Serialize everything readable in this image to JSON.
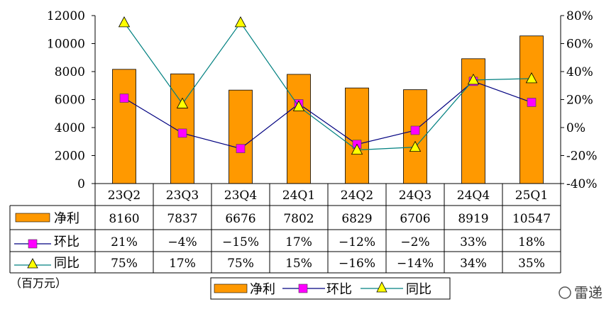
{
  "chart_data": {
    "type": "bar",
    "categories": [
      "23Q2",
      "23Q3",
      "23Q4",
      "24Q1",
      "24Q2",
      "24Q3",
      "24Q4",
      "25Q1"
    ],
    "series": [
      {
        "name": "净利",
        "type": "bar",
        "axis": "left",
        "color": "#FF9900",
        "values": [
          8160,
          7837,
          6676,
          7802,
          6829,
          6706,
          8919,
          10547
        ],
        "table": [
          "8160",
          "7837",
          "6676",
          "7802",
          "6829",
          "6706",
          "8919",
          "10547"
        ]
      },
      {
        "name": "环比",
        "type": "line",
        "axis": "right",
        "marker": "square",
        "color": "#FF00FF",
        "line_color": "#000080",
        "values": [
          21,
          -4,
          -15,
          17,
          -12,
          -2,
          33,
          18
        ],
        "table": [
          "21%",
          "−4%",
          "−15%",
          "17%",
          "−12%",
          "−2%",
          "33%",
          "18%"
        ]
      },
      {
        "name": "同比",
        "type": "line",
        "axis": "right",
        "marker": "triangle",
        "color": "#FFFF00",
        "line_color": "#008080",
        "values": [
          75,
          17,
          75,
          15,
          -16,
          -14,
          34,
          35
        ],
        "table": [
          "75%",
          "17%",
          "75%",
          "15%",
          "−16%",
          "−14%",
          "34%",
          "35%"
        ]
      }
    ],
    "y_left": {
      "min": 0,
      "max": 12000,
      "ticks": [
        "0",
        "2000",
        "4000",
        "6000",
        "8000",
        "10000",
        "12000"
      ]
    },
    "y_right": {
      "min": -40,
      "max": 80,
      "ticks": [
        "-40%",
        "-20%",
        "0%",
        "20%",
        "40%",
        "60%",
        "80%"
      ]
    },
    "unit_label": "（百万元）",
    "legend": [
      "净利",
      "环比",
      "同比"
    ],
    "grid": false,
    "legend_position": "bottom"
  },
  "watermark": "雷递"
}
